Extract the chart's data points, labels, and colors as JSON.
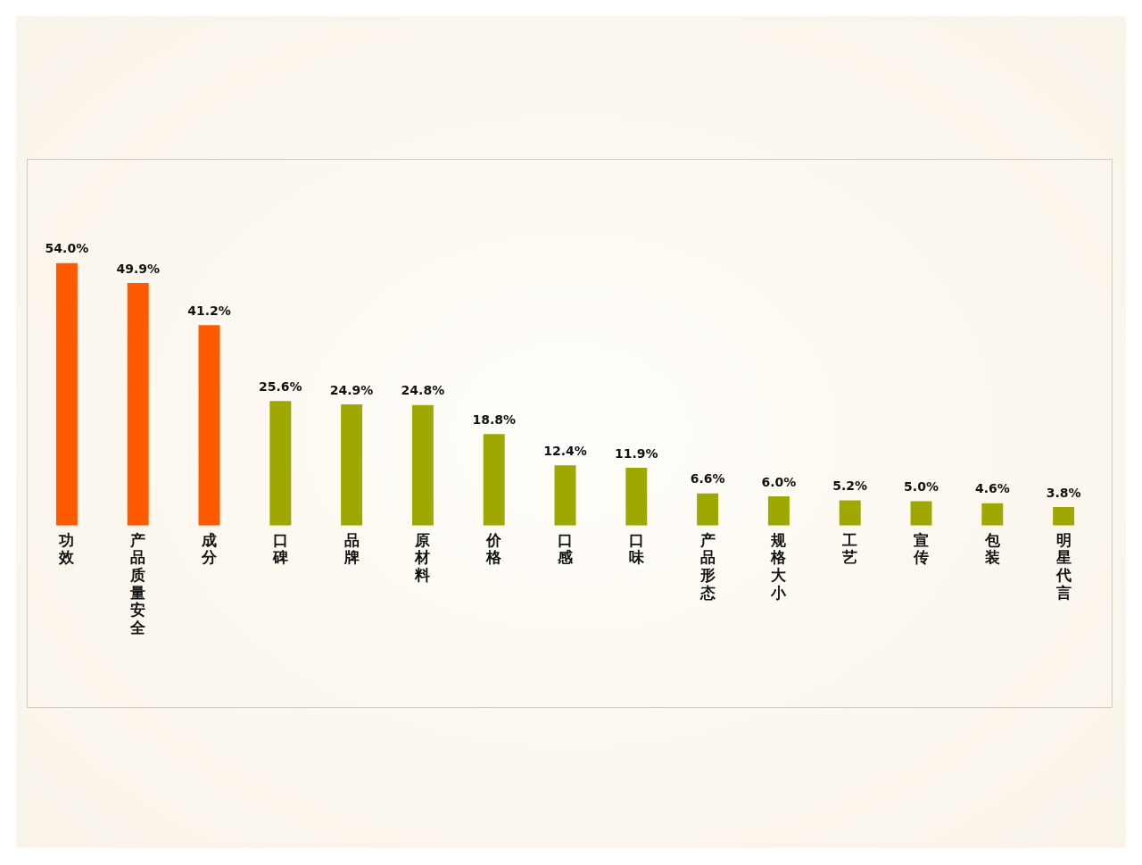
{
  "chart_data": {
    "type": "bar",
    "categories": [
      "功效",
      "产品质量安全",
      "成分",
      "口碑",
      "品牌",
      "原材料",
      "价格",
      "口感",
      "口味",
      "产品形态",
      "规格大小",
      "工艺",
      "宣传",
      "包装",
      "明星代言"
    ],
    "values": [
      54.0,
      49.9,
      41.2,
      25.6,
      24.9,
      24.8,
      18.8,
      12.4,
      11.9,
      6.6,
      6.0,
      5.2,
      5.0,
      4.6,
      3.8
    ],
    "value_labels": [
      "54.0%",
      "49.9%",
      "41.2%",
      "25.6%",
      "24.9%",
      "24.8%",
      "18.8%",
      "12.4%",
      "11.9%",
      "6.6%",
      "6.0%",
      "5.2%",
      "5.0%",
      "4.6%",
      "3.8%"
    ],
    "colors": [
      "#ff5a00",
      "#ff5a00",
      "#ff5a00",
      "#9ea800",
      "#9ea800",
      "#9ea800",
      "#9ea800",
      "#9ea800",
      "#9ea800",
      "#9ea800",
      "#9ea800",
      "#9ea800",
      "#9ea800",
      "#9ea800",
      "#9ea800"
    ],
    "tick_labels": "x"
  }
}
